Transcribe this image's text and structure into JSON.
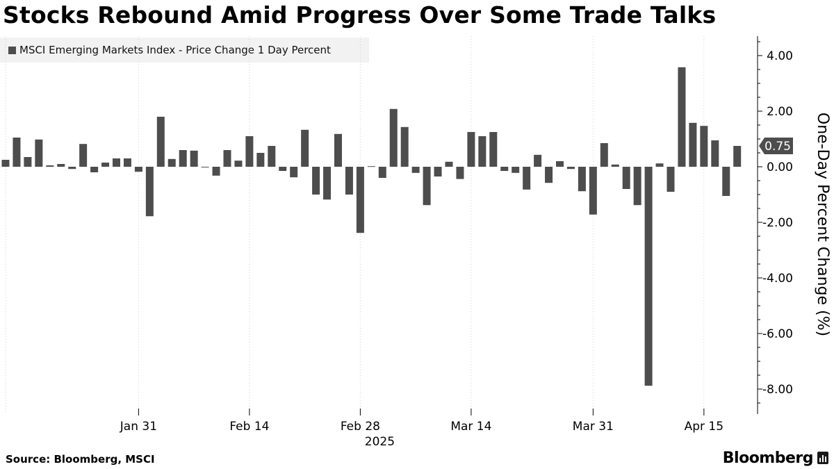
{
  "header": {
    "title": "Stocks Rebound Amid Progress Over Some Trade Talks"
  },
  "legend": {
    "label": "MSCI Emerging Markets Index - Price Change 1 Day Percent"
  },
  "footer": {
    "source": "Source: Bloomberg, MSCI",
    "brand": "Bloomberg"
  },
  "chart_data": {
    "type": "bar",
    "series": [
      {
        "name": "MSCI Emerging Markets Index - Price Change 1 Day Percent",
        "color": "#4d4d4d",
        "values": [
          0.25,
          1.05,
          0.35,
          0.98,
          0.05,
          0.1,
          -0.08,
          0.82,
          -0.2,
          0.15,
          0.3,
          0.3,
          -0.18,
          -1.78,
          1.8,
          0.28,
          0.6,
          0.58,
          -0.02,
          -0.32,
          0.6,
          0.22,
          1.1,
          0.5,
          0.75,
          -0.15,
          -0.38,
          1.33,
          -1.0,
          -1.18,
          1.18,
          -1.0,
          -2.38,
          0.02,
          -0.4,
          2.08,
          1.43,
          -0.22,
          -1.38,
          -0.35,
          0.18,
          -0.44,
          1.25,
          1.1,
          1.25,
          -0.15,
          -0.22,
          -0.82,
          0.43,
          -0.58,
          0.2,
          -0.08,
          -0.88,
          -1.72,
          0.85,
          0.08,
          -0.8,
          -1.38,
          -7.88,
          0.12,
          -0.9,
          3.58,
          1.58,
          1.47,
          0.95,
          -1.05,
          0.75
        ]
      }
    ],
    "x_ticks": [
      "Jan 31",
      "Feb 14",
      "Feb 28",
      "Mar 14",
      "Mar 31",
      "Apr 15"
    ],
    "x_tick_bar_index": [
      12,
      22,
      32,
      42,
      53,
      63
    ],
    "x_year_label": "2025",
    "y_ticks": [
      4.0,
      2.0,
      0.0,
      -2.0,
      -4.0,
      -6.0,
      -8.0
    ],
    "ylim": [
      -8.9,
      4.7
    ],
    "ylabel": "One-Day Percent Change (%)",
    "last_value_label": "0.75",
    "y_axis_position": "right",
    "gridlines": "vertical dotted",
    "legend_position": "top-left"
  }
}
